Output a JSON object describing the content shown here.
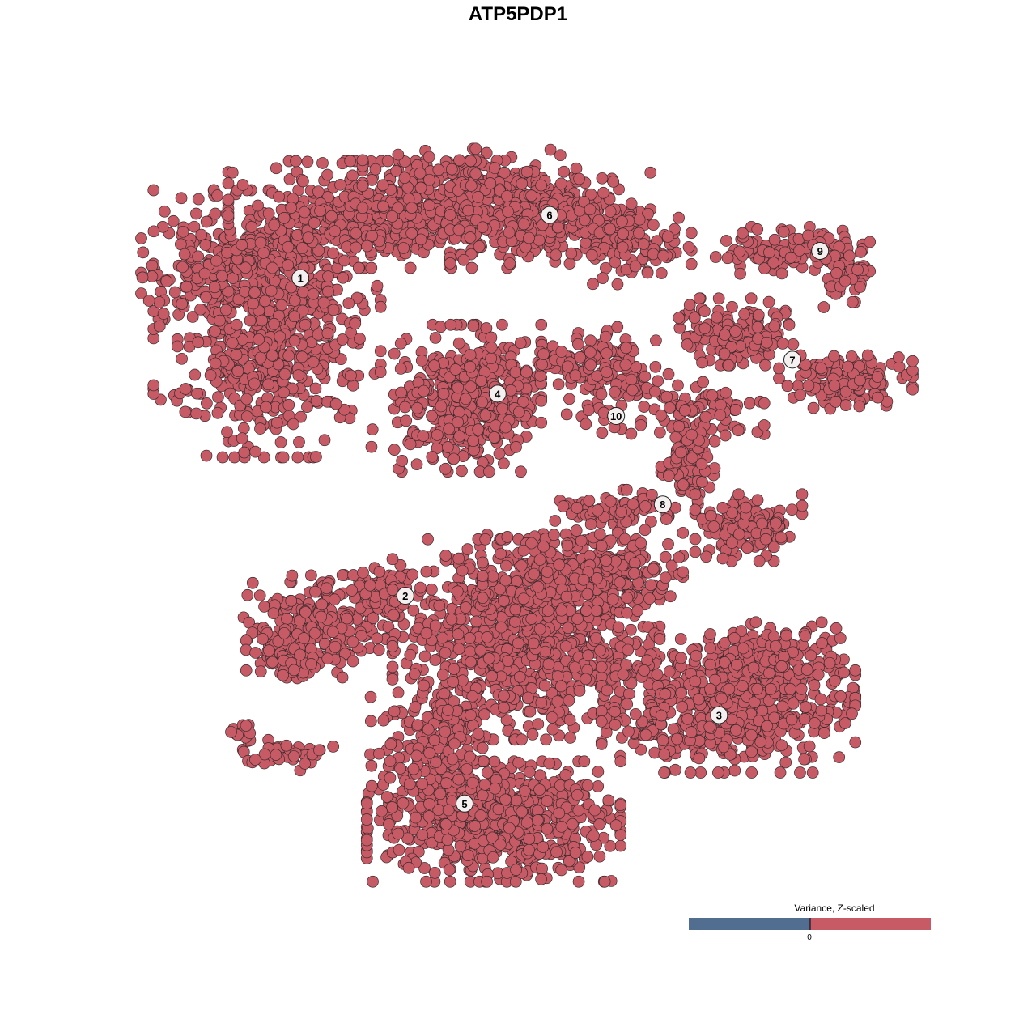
{
  "chart_data": {
    "type": "scatter",
    "title": "ATP5PDP1",
    "xlabel": "",
    "ylabel": "",
    "grid": false,
    "point_color": "#c65b66",
    "point_edge_color": "#3a2a2c",
    "cluster_labels": [
      {
        "label": "1",
        "x": -22.4,
        "y": 24.7
      },
      {
        "label": "2",
        "x": -11.6,
        "y": -8.0
      },
      {
        "label": "3",
        "x": 20.7,
        "y": -20.3
      },
      {
        "label": "4",
        "x": -2.1,
        "y": 12.8
      },
      {
        "label": "5",
        "x": -5.5,
        "y": -29.4
      },
      {
        "label": "6",
        "x": 3.25,
        "y": 31.2
      },
      {
        "label": "7",
        "x": 28.25,
        "y": 16.3
      },
      {
        "label": "8",
        "x": 14.9,
        "y": 1.4
      },
      {
        "label": "9",
        "x": 31.1,
        "y": 27.5
      },
      {
        "label": "10",
        "x": 10.1,
        "y": 10.5
      }
    ],
    "legend": {
      "title": "Variance, Z-scaled",
      "tick_label": "0",
      "low_color": "#516e91",
      "high_color": "#c65b66",
      "placement": "bottom-right"
    }
  }
}
